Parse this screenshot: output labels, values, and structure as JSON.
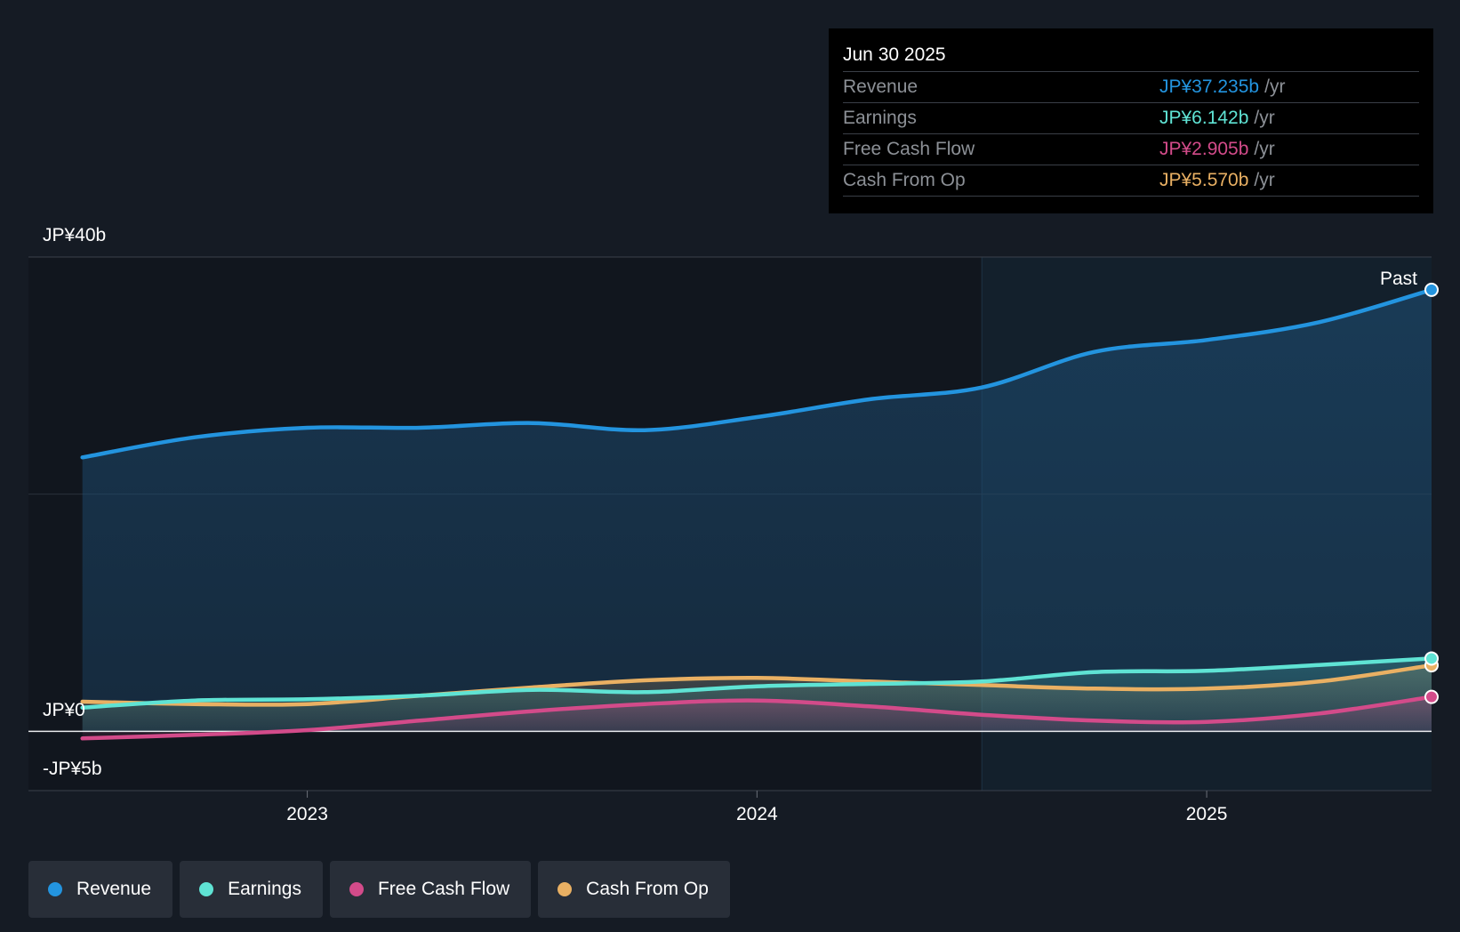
{
  "colors": {
    "revenue": "#2394df",
    "earnings": "#5fe3d4",
    "free_cash_flow": "#d34b8a",
    "cash_from_op": "#e9b063"
  },
  "tooltip": {
    "date": "Jun 30 2025",
    "unit": "/yr",
    "rows": [
      {
        "label": "Revenue",
        "value": "JP¥37.235b"
      },
      {
        "label": "Earnings",
        "value": "JP¥6.142b"
      },
      {
        "label": "Free Cash Flow",
        "value": "JP¥2.905b"
      },
      {
        "label": "Cash From Op",
        "value": "JP¥5.570b"
      }
    ]
  },
  "legend": [
    {
      "label": "Revenue",
      "color": "#2394df"
    },
    {
      "label": "Earnings",
      "color": "#5fe3d4"
    },
    {
      "label": "Free Cash Flow",
      "color": "#d34b8a"
    },
    {
      "label": "Cash From Op",
      "color": "#e9b063"
    }
  ],
  "chart_data": {
    "type": "line",
    "title": "",
    "xlabel": "",
    "ylabel": "",
    "y_tick_labels": [
      "JP¥40b",
      "JP¥0",
      "-JP¥5b"
    ],
    "x_tick_labels": [
      "2023",
      "2024",
      "2025"
    ],
    "x_ticks": [
      2023.0,
      2024.0,
      2025.0
    ],
    "xlim": [
      2022.38,
      2025.5
    ],
    "ylim": [
      -5,
      40
    ],
    "past_label": "Past",
    "past_start": 2024.5,
    "x": [
      2022.5,
      2022.75,
      2023.0,
      2023.25,
      2023.5,
      2023.75,
      2024.0,
      2024.25,
      2024.5,
      2024.75,
      2025.0,
      2025.25,
      2025.5
    ],
    "series": [
      {
        "name": "Revenue",
        "values": [
          23.1,
          24.8,
          25.6,
          25.6,
          26.0,
          25.4,
          26.5,
          28.0,
          29.0,
          32.0,
          33.0,
          34.5,
          37.235
        ]
      },
      {
        "name": "Earnings",
        "values": [
          2.0,
          2.6,
          2.7,
          3.0,
          3.5,
          3.3,
          3.8,
          4.0,
          4.2,
          5.0,
          5.1,
          5.6,
          6.142
        ]
      },
      {
        "name": "Free Cash Flow",
        "values": [
          -0.6,
          -0.3,
          0.1,
          0.9,
          1.7,
          2.3,
          2.6,
          2.1,
          1.4,
          0.9,
          0.8,
          1.5,
          2.905
        ]
      },
      {
        "name": "Cash From Op",
        "values": [
          2.5,
          2.3,
          2.3,
          3.0,
          3.7,
          4.3,
          4.5,
          4.2,
          3.9,
          3.6,
          3.6,
          4.2,
          5.57
        ]
      }
    ]
  }
}
